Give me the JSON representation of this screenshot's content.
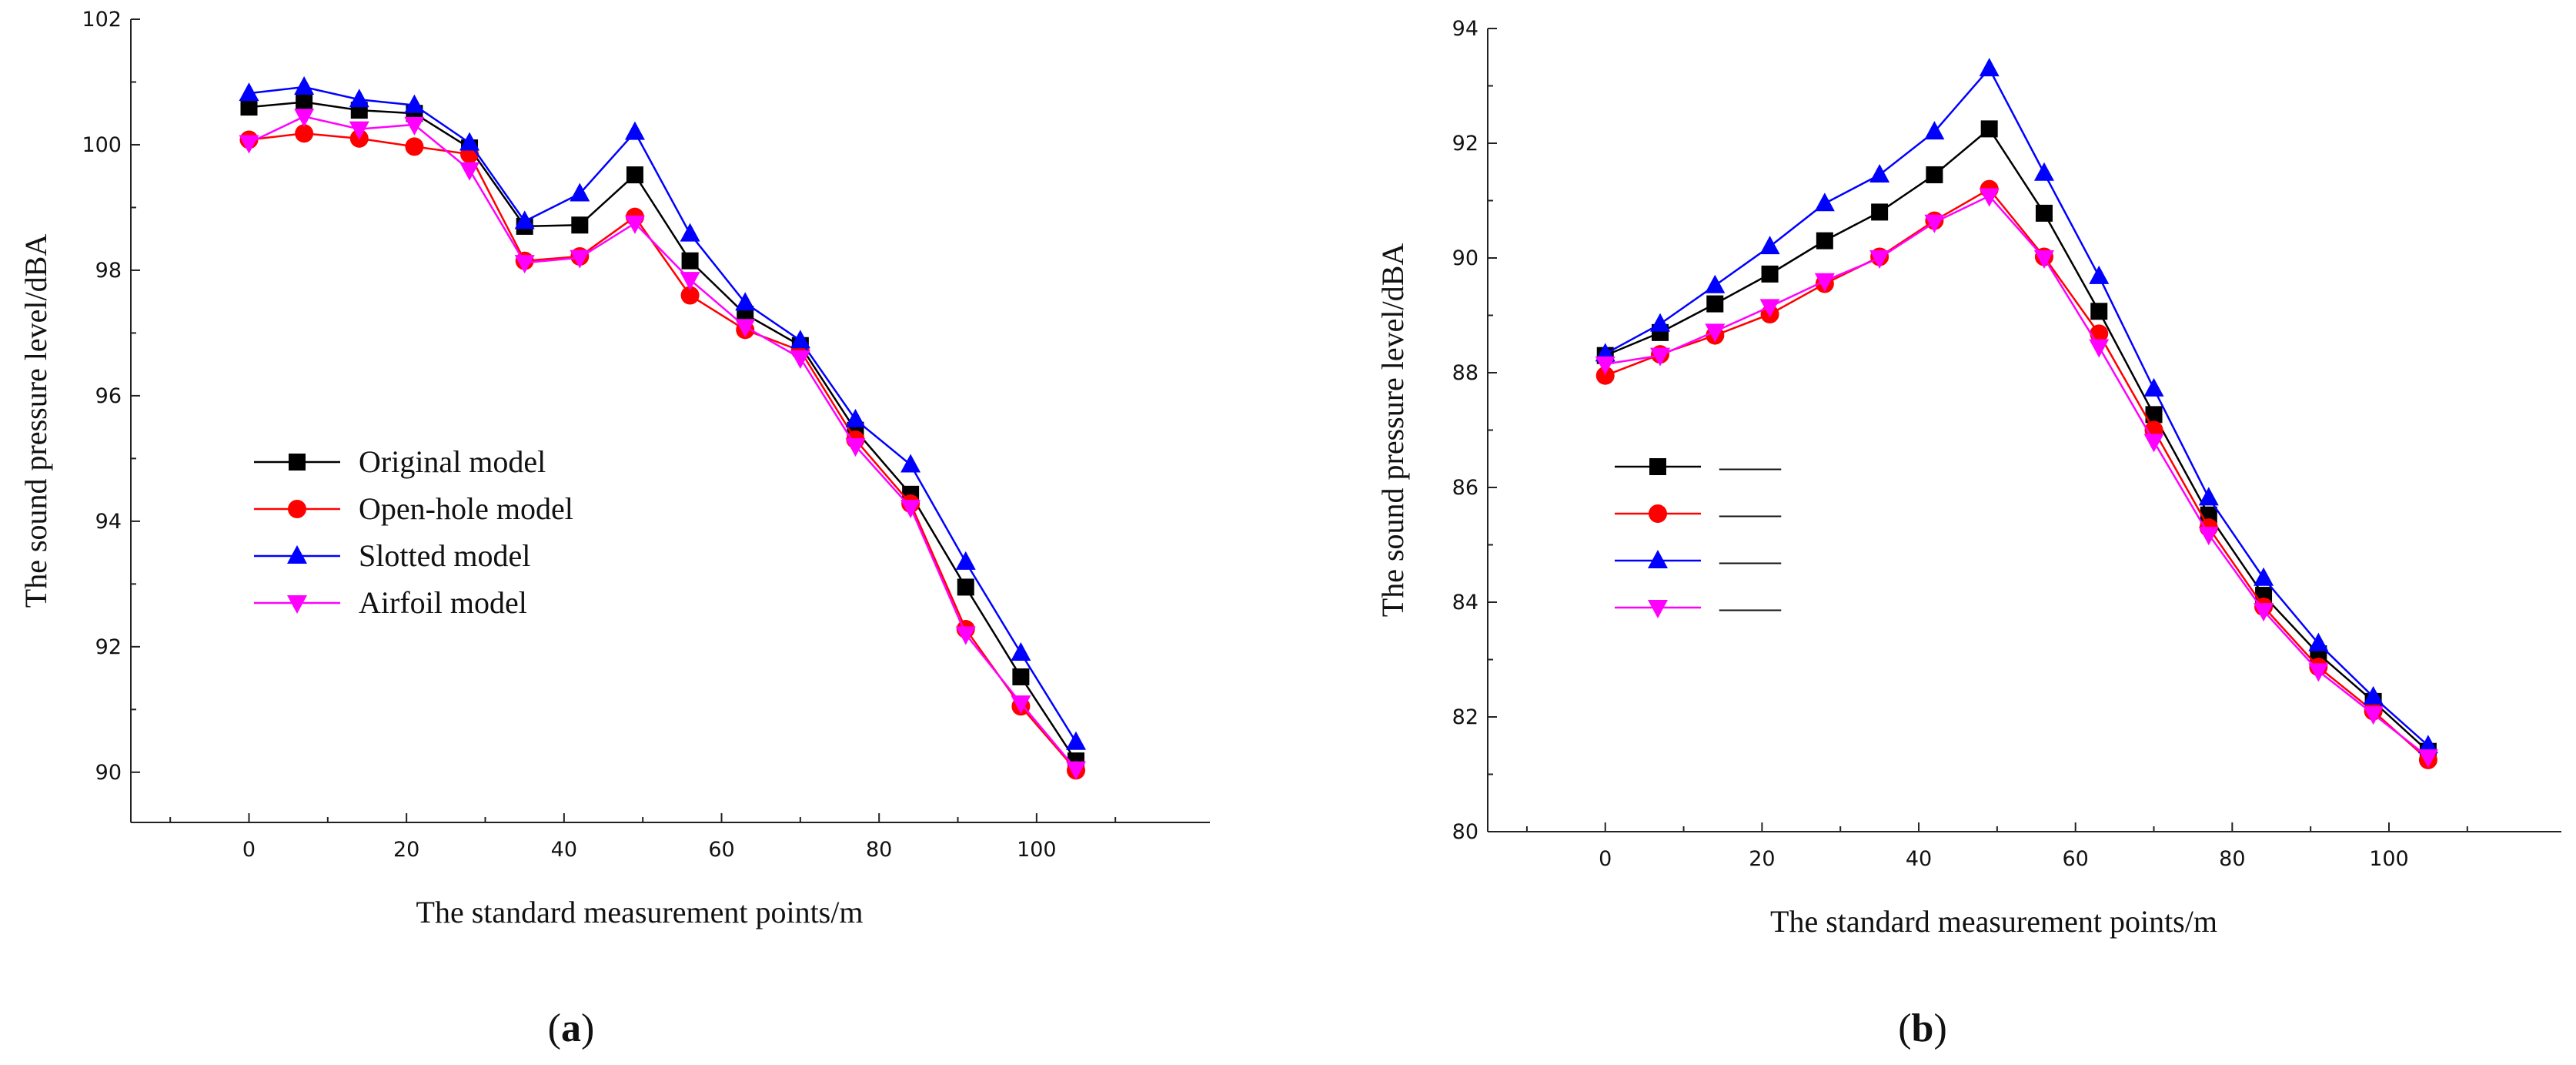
{
  "panels": [
    {
      "letter": "a",
      "open": "(",
      "close": ")"
    },
    {
      "letter": "b",
      "open": "(",
      "close": ")"
    }
  ],
  "chart_data": [
    {
      "type": "line",
      "xlabel": "The standard measurement points/m",
      "ylabel": "The sound pressure level/dBA",
      "xlim": [
        -15,
        122
      ],
      "ylim": [
        89.2,
        102
      ],
      "xticks": [
        0,
        20,
        40,
        60,
        80,
        100
      ],
      "yticks": [
        90,
        92,
        94,
        96,
        98,
        100,
        102
      ],
      "grid": false,
      "legend_position": "center-left",
      "x": [
        0,
        7,
        14,
        21,
        28,
        35,
        42,
        49,
        56,
        63,
        70,
        77,
        84,
        91,
        98,
        105
      ],
      "series": [
        {
          "name": "Original model",
          "color": "#000000",
          "marker": "square",
          "values": [
            100.6,
            100.68,
            100.55,
            100.5,
            99.95,
            98.7,
            98.72,
            99.52,
            98.15,
            97.3,
            96.8,
            95.45,
            94.43,
            92.95,
            91.52,
            90.18
          ]
        },
        {
          "name": "Open-hole model",
          "color": "#ff0000",
          "marker": "circle",
          "values": [
            100.08,
            100.18,
            100.1,
            99.97,
            99.85,
            98.15,
            98.22,
            98.85,
            97.6,
            97.05,
            96.72,
            95.3,
            94.28,
            92.28,
            91.05,
            90.03
          ]
        },
        {
          "name": "Slotted model",
          "color": "#0000ff",
          "marker": "triangle-up",
          "values": [
            100.82,
            100.92,
            100.72,
            100.63,
            100.03,
            98.78,
            99.22,
            100.2,
            98.58,
            97.48,
            96.88,
            95.62,
            94.9,
            93.35,
            91.9,
            90.48
          ]
        },
        {
          "name": "Airfoil model",
          "color": "#ff00ff",
          "marker": "triangle-down",
          "values": [
            100.03,
            100.45,
            100.25,
            100.32,
            99.6,
            98.12,
            98.2,
            98.75,
            97.85,
            97.1,
            96.6,
            95.2,
            94.22,
            92.2,
            91.1,
            90.05
          ]
        }
      ]
    },
    {
      "type": "line",
      "xlabel": "The standard measurement points/m",
      "ylabel": "The sound pressure level/dBA",
      "xlim": [
        -15,
        122
      ],
      "ylim": [
        80,
        94
      ],
      "xticks": [
        0,
        20,
        40,
        60,
        80,
        100
      ],
      "yticks": [
        80,
        82,
        84,
        86,
        88,
        90,
        92,
        94
      ],
      "grid": false,
      "legend_position": "center-left",
      "x": [
        0,
        7,
        14,
        21,
        28,
        35,
        42,
        49,
        56,
        63,
        70,
        77,
        84,
        91,
        98,
        105
      ],
      "series": [
        {
          "name": "——",
          "color": "#000000",
          "marker": "square",
          "values": [
            88.3,
            88.7,
            89.2,
            89.72,
            90.3,
            90.8,
            91.45,
            92.25,
            90.78,
            89.07,
            87.27,
            85.52,
            84.12,
            83.1,
            82.27,
            81.4
          ]
        },
        {
          "name": "——",
          "color": "#ff0000",
          "marker": "circle",
          "values": [
            87.95,
            88.32,
            88.65,
            89.02,
            89.55,
            90.02,
            90.65,
            91.2,
            90.02,
            88.68,
            87.0,
            85.3,
            83.92,
            82.87,
            82.1,
            81.25
          ]
        },
        {
          "name": "——",
          "color": "#0000ff",
          "marker": "triangle-up",
          "values": [
            88.33,
            88.85,
            89.52,
            90.2,
            90.95,
            91.45,
            92.2,
            93.3,
            91.48,
            89.68,
            87.72,
            85.82,
            84.42,
            83.28,
            82.35,
            81.5
          ]
        },
        {
          "name": "——",
          "color": "#ff00ff",
          "marker": "triangle-down",
          "values": [
            88.15,
            88.3,
            88.72,
            89.15,
            89.6,
            90.0,
            90.62,
            91.08,
            90.0,
            88.45,
            86.8,
            85.18,
            83.85,
            82.8,
            82.05,
            81.3
          ]
        }
      ]
    }
  ]
}
